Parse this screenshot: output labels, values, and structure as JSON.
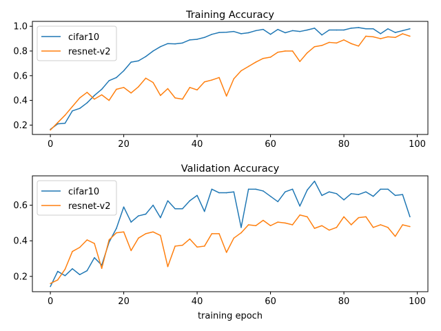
{
  "chart_data": [
    {
      "type": "line",
      "title": "Training Accuracy",
      "xlabel": "",
      "ylabel": "",
      "xlim": [
        -4.9,
        102.9
      ],
      "ylim": [
        0.124,
        1.04
      ],
      "xticks": [
        0,
        20,
        40,
        60,
        80,
        100
      ],
      "xtick_labels": [
        "0",
        "20",
        "40",
        "60",
        "80",
        "100"
      ],
      "yticks": [
        0.2,
        0.4,
        0.6,
        0.8,
        1.0
      ],
      "ytick_labels": [
        "0.2",
        "0.4",
        "0.6",
        "0.8",
        "1.0"
      ],
      "legend_position": "upper-left",
      "x": [
        0,
        2,
        4,
        6,
        8,
        10,
        12,
        14,
        16,
        18,
        20,
        22,
        24,
        26,
        28,
        30,
        32,
        34,
        36,
        38,
        40,
        42,
        44,
        46,
        48,
        50,
        52,
        54,
        56,
        58,
        60,
        62,
        64,
        66,
        68,
        70,
        72,
        74,
        76,
        78,
        80,
        82,
        84,
        86,
        88,
        90,
        92,
        94,
        96,
        98
      ],
      "series": [
        {
          "name": "cifar10",
          "color": "#1f77b4",
          "values": [
            0.165,
            0.21,
            0.215,
            0.315,
            0.335,
            0.38,
            0.44,
            0.49,
            0.56,
            0.585,
            0.64,
            0.71,
            0.72,
            0.755,
            0.8,
            0.835,
            0.86,
            0.858,
            0.865,
            0.89,
            0.895,
            0.91,
            0.935,
            0.95,
            0.952,
            0.958,
            0.94,
            0.948,
            0.965,
            0.975,
            0.935,
            0.975,
            0.948,
            0.965,
            0.958,
            0.97,
            0.985,
            0.93,
            0.97,
            0.97,
            0.97,
            0.985,
            0.99,
            0.98,
            0.98,
            0.94,
            0.98,
            0.95,
            0.965,
            0.98
          ]
        },
        {
          "name": "resnet-v2",
          "color": "#ff7f0e",
          "values": [
            0.16,
            0.22,
            0.28,
            0.35,
            0.42,
            0.465,
            0.41,
            0.445,
            0.4,
            0.49,
            0.505,
            0.46,
            0.51,
            0.58,
            0.545,
            0.44,
            0.495,
            0.42,
            0.41,
            0.505,
            0.485,
            0.55,
            0.565,
            0.585,
            0.435,
            0.575,
            0.64,
            0.675,
            0.71,
            0.74,
            0.75,
            0.79,
            0.8,
            0.8,
            0.715,
            0.785,
            0.835,
            0.845,
            0.87,
            0.865,
            0.89,
            0.86,
            0.84,
            0.92,
            0.915,
            0.9,
            0.915,
            0.91,
            0.94,
            0.92
          ]
        }
      ]
    },
    {
      "type": "line",
      "title": "Validation Accuracy",
      "xlabel": "training epoch",
      "ylabel": "",
      "xlim": [
        -4.9,
        102.9
      ],
      "ylim": [
        0.114,
        0.765
      ],
      "xticks": [
        0,
        20,
        40,
        60,
        80,
        100
      ],
      "xtick_labels": [
        "0",
        "20",
        "40",
        "60",
        "80",
        "100"
      ],
      "yticks": [
        0.2,
        0.4,
        0.6
      ],
      "ytick_labels": [
        "0.2",
        "0.4",
        "0.6"
      ],
      "legend_position": "upper-left",
      "x": [
        0,
        2,
        4,
        6,
        8,
        10,
        12,
        14,
        16,
        18,
        20,
        22,
        24,
        26,
        28,
        30,
        32,
        34,
        36,
        38,
        40,
        42,
        44,
        46,
        48,
        50,
        52,
        54,
        56,
        58,
        60,
        62,
        64,
        66,
        68,
        70,
        72,
        74,
        76,
        78,
        80,
        82,
        84,
        86,
        88,
        90,
        92,
        94,
        96,
        98
      ],
      "series": [
        {
          "name": "cifar10",
          "color": "#1f77b4",
          "values": [
            0.143,
            0.228,
            0.204,
            0.243,
            0.21,
            0.232,
            0.305,
            0.263,
            0.392,
            0.47,
            0.59,
            0.505,
            0.54,
            0.55,
            0.6,
            0.53,
            0.625,
            0.58,
            0.58,
            0.625,
            0.655,
            0.565,
            0.69,
            0.67,
            0.67,
            0.675,
            0.475,
            0.69,
            0.69,
            0.68,
            0.65,
            0.62,
            0.675,
            0.69,
            0.595,
            0.685,
            0.735,
            0.655,
            0.675,
            0.665,
            0.63,
            0.665,
            0.66,
            0.675,
            0.65,
            0.69,
            0.69,
            0.655,
            0.66,
            0.535
          ]
        },
        {
          "name": "resnet-v2",
          "color": "#ff7f0e",
          "values": [
            0.16,
            0.18,
            0.24,
            0.34,
            0.363,
            0.405,
            0.385,
            0.245,
            0.405,
            0.445,
            0.45,
            0.345,
            0.415,
            0.44,
            0.45,
            0.43,
            0.255,
            0.37,
            0.375,
            0.41,
            0.365,
            0.37,
            0.44,
            0.44,
            0.335,
            0.415,
            0.445,
            0.49,
            0.485,
            0.515,
            0.485,
            0.505,
            0.5,
            0.49,
            0.545,
            0.535,
            0.47,
            0.485,
            0.46,
            0.475,
            0.535,
            0.49,
            0.53,
            0.535,
            0.475,
            0.49,
            0.475,
            0.425,
            0.49,
            0.48
          ]
        }
      ]
    }
  ]
}
